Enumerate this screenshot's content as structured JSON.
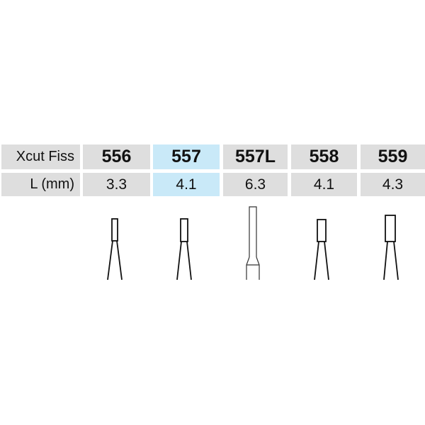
{
  "table": {
    "row_headers": [
      "Xcut Fiss",
      "L (mm)"
    ],
    "columns": [
      {
        "model": "556",
        "length": "3.3",
        "highlighted": false
      },
      {
        "model": "557",
        "length": "4.1",
        "highlighted": true
      },
      {
        "model": "557L",
        "length": "6.3",
        "highlighted": false
      },
      {
        "model": "558",
        "length": "4.1",
        "highlighted": false
      },
      {
        "model": "559",
        "length": "4.3",
        "highlighted": false
      }
    ]
  },
  "colors": {
    "cell": "#dedede",
    "highlight": "#c9e9f8"
  }
}
